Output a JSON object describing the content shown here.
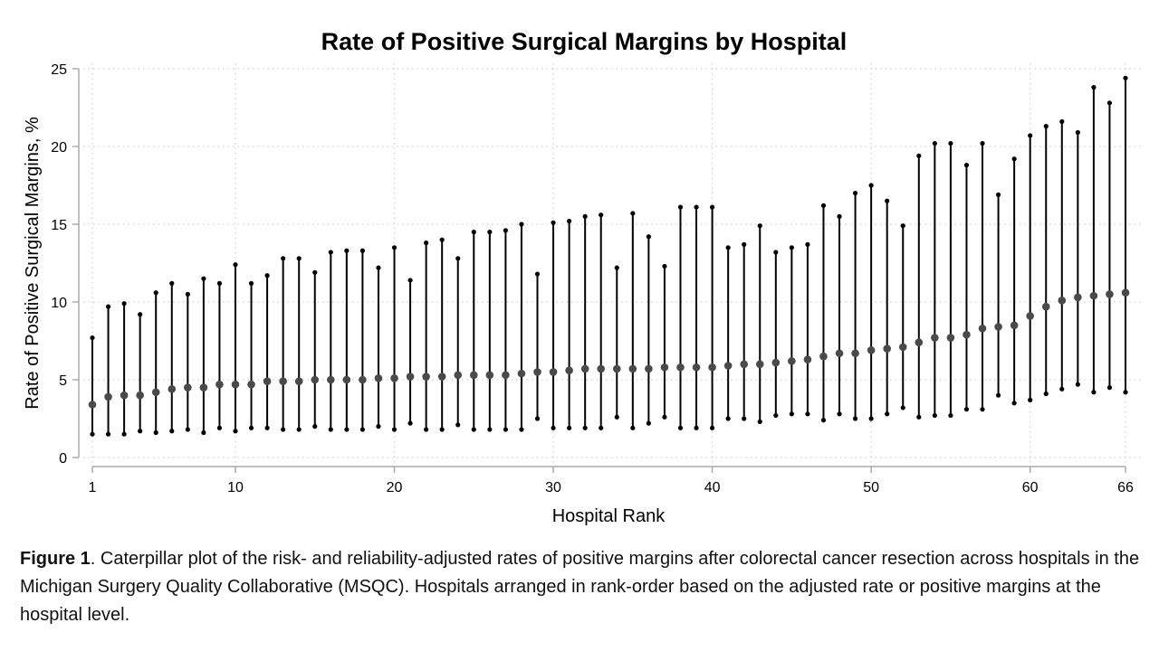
{
  "chart_data": {
    "type": "caterpillar",
    "title": "Rate of Positive Surgical Margins by Hospital",
    "xlabel": "Hospital Rank",
    "ylabel": "Rate of Positive Surgical Margins, %",
    "xlim": [
      1,
      66
    ],
    "ylim": [
      0,
      25
    ],
    "xticks": [
      1,
      10,
      20,
      30,
      40,
      50,
      60,
      66
    ],
    "yticks": [
      0,
      5,
      10,
      15,
      20,
      25
    ],
    "grid": true,
    "colors": {
      "point": "#4a4a4a",
      "interval": "#000000",
      "grid": "#cfcfcf",
      "axis": "#aaaaaa"
    },
    "x": [
      1,
      2,
      3,
      4,
      5,
      6,
      7,
      8,
      9,
      10,
      11,
      12,
      13,
      14,
      15,
      16,
      17,
      18,
      19,
      20,
      21,
      22,
      23,
      24,
      25,
      26,
      27,
      28,
      29,
      30,
      31,
      32,
      33,
      34,
      35,
      36,
      37,
      38,
      39,
      40,
      41,
      42,
      43,
      44,
      45,
      46,
      47,
      48,
      49,
      50,
      51,
      52,
      53,
      54,
      55,
      56,
      57,
      58,
      59,
      60,
      61,
      62,
      63,
      64,
      65,
      66
    ],
    "estimate": [
      3.4,
      3.9,
      4.0,
      4.0,
      4.2,
      4.4,
      4.5,
      4.5,
      4.7,
      4.7,
      4.7,
      4.9,
      4.9,
      4.9,
      5.0,
      5.0,
      5.0,
      5.0,
      5.1,
      5.1,
      5.2,
      5.2,
      5.2,
      5.3,
      5.3,
      5.3,
      5.3,
      5.4,
      5.5,
      5.5,
      5.6,
      5.7,
      5.7,
      5.7,
      5.7,
      5.7,
      5.8,
      5.8,
      5.8,
      5.8,
      5.9,
      6.0,
      6.0,
      6.1,
      6.2,
      6.3,
      6.5,
      6.7,
      6.7,
      6.9,
      7.0,
      7.1,
      7.4,
      7.7,
      7.7,
      7.9,
      8.3,
      8.4,
      8.5,
      9.1,
      9.7,
      10.1,
      10.3,
      10.4,
      10.5,
      10.6
    ],
    "lower": [
      1.5,
      1.5,
      1.5,
      1.7,
      1.6,
      1.7,
      1.8,
      1.6,
      1.9,
      1.7,
      1.9,
      1.9,
      1.8,
      1.8,
      2.0,
      1.8,
      1.8,
      1.8,
      2.0,
      1.8,
      2.2,
      1.8,
      1.8,
      2.1,
      1.8,
      1.8,
      1.8,
      1.8,
      2.5,
      1.9,
      1.9,
      1.9,
      1.9,
      2.6,
      1.9,
      2.2,
      2.6,
      1.9,
      1.9,
      1.9,
      2.5,
      2.5,
      2.3,
      2.7,
      2.8,
      2.8,
      2.4,
      2.8,
      2.5,
      2.5,
      2.8,
      3.2,
      2.6,
      2.7,
      2.7,
      3.1,
      3.1,
      4.0,
      3.5,
      3.7,
      4.1,
      4.4,
      4.7,
      4.2,
      4.5,
      4.2
    ],
    "upper": [
      7.7,
      9.7,
      9.9,
      9.2,
      10.6,
      11.2,
      10.5,
      11.5,
      11.2,
      12.4,
      11.2,
      11.7,
      12.8,
      12.8,
      11.9,
      13.2,
      13.3,
      13.3,
      12.2,
      13.5,
      11.4,
      13.8,
      14.0,
      12.8,
      14.5,
      14.5,
      14.6,
      15.0,
      11.8,
      15.1,
      15.2,
      15.5,
      15.6,
      12.2,
      15.7,
      14.2,
      12.3,
      16.1,
      16.1,
      16.1,
      13.5,
      13.7,
      14.9,
      13.2,
      13.5,
      13.7,
      16.2,
      15.5,
      17.0,
      17.5,
      16.5,
      14.9,
      19.4,
      20.2,
      20.2,
      18.8,
      20.2,
      16.9,
      19.2,
      20.7,
      21.3,
      21.6,
      20.9,
      23.8,
      22.8,
      24.4
    ]
  },
  "caption": {
    "label": "Figure 1",
    "text": ". Caterpillar plot of the risk- and reliability-adjusted rates of positive margins after colorectal cancer resection across hospitals in the Michigan Surgery Quality Collaborative (MSQC). Hospitals arranged in rank-order based on the adjusted rate or positive margins at the hospital level."
  }
}
